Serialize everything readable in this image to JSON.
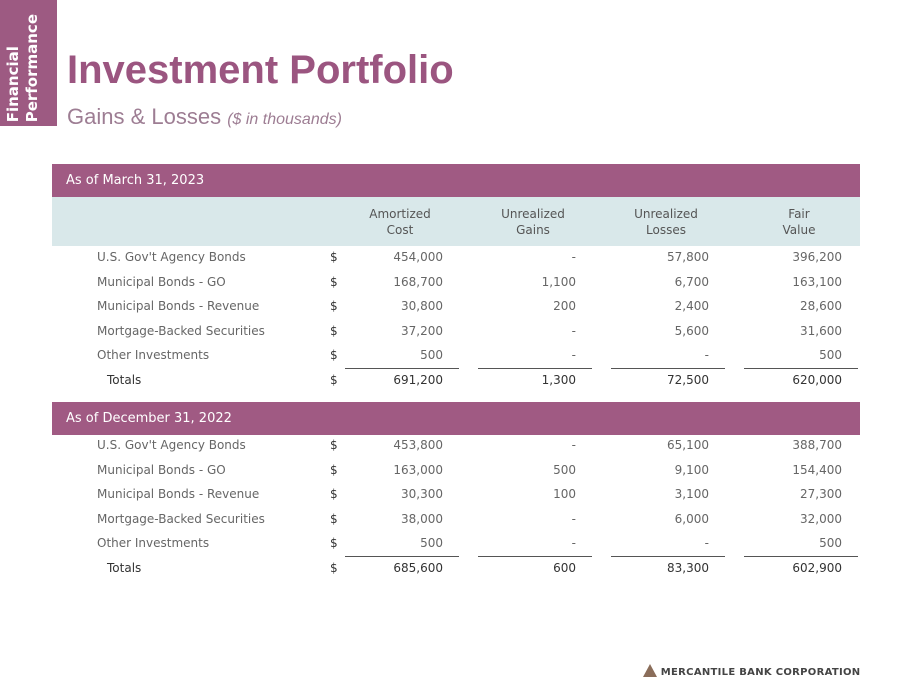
{
  "side_tab": [
    "Financial",
    "Performance"
  ],
  "header": {
    "title": "Investment Portfolio",
    "subtitle": "Gains & Losses",
    "subtitle_note": "($ in thousands)"
  },
  "table": {
    "columns": [
      [
        "Amortized",
        "Cost"
      ],
      [
        "Unrealized",
        "Gains"
      ],
      [
        "Unrealized",
        "Losses"
      ],
      [
        "Fair",
        "Value"
      ]
    ],
    "sections": [
      {
        "title": "As of March 31, 2023",
        "rows": [
          {
            "label": "U.S. Gov't Agency Bonds",
            "currency": "$",
            "cells": [
              "454,000",
              "-",
              "57,800",
              "396,200"
            ]
          },
          {
            "label": "Municipal Bonds - GO",
            "currency": "$",
            "cells": [
              "168,700",
              "1,100",
              "6,700",
              "163,100"
            ]
          },
          {
            "label": "Municipal Bonds - Revenue",
            "currency": "$",
            "cells": [
              "30,800",
              "200",
              "2,400",
              "28,600"
            ]
          },
          {
            "label": "Mortgage-Backed Securities",
            "currency": "$",
            "cells": [
              "37,200",
              "-",
              "5,600",
              "31,600"
            ]
          },
          {
            "label": "Other Investments",
            "currency": "$",
            "cells": [
              "500",
              "-",
              "-",
              "500"
            ]
          },
          {
            "label": "Totals",
            "currency": "$",
            "cells": [
              "691,200",
              "1,300",
              "72,500",
              "620,000"
            ]
          }
        ]
      },
      {
        "title": "As of December 31, 2022",
        "rows": [
          {
            "label": "U.S. Gov't Agency Bonds",
            "currency": "$",
            "cells": [
              "453,800",
              "-",
              "65,100",
              "388,700"
            ]
          },
          {
            "label": "Municipal Bonds - GO",
            "currency": "$",
            "cells": [
              "163,000",
              "500",
              "9,100",
              "154,400"
            ]
          },
          {
            "label": "Municipal Bonds - Revenue",
            "currency": "$",
            "cells": [
              "30,300",
              "100",
              "3,100",
              "27,300"
            ]
          },
          {
            "label": "Mortgage-Backed Securities",
            "currency": "$",
            "cells": [
              "38,000",
              "-",
              "6,000",
              "32,000"
            ]
          },
          {
            "label": "Other Investments",
            "currency": "$",
            "cells": [
              "500",
              "-",
              "-",
              "500"
            ]
          },
          {
            "label": "Totals",
            "currency": "$",
            "cells": [
              "685,600",
              "600",
              "83,300",
              "602,900"
            ]
          }
        ]
      }
    ]
  },
  "footer": {
    "company": "MERCANTILE BANK CORPORATION"
  }
}
